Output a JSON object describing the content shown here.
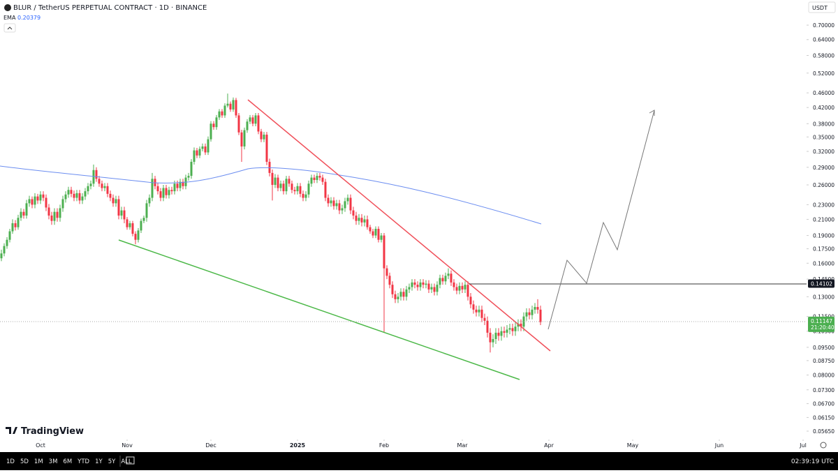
{
  "header": {
    "symbol": "BLUR / TetherUS PERPETUAL CONTRACT · 1D · BINANCE",
    "indicator": "EMA",
    "indicator_value": 0.20379,
    "currency": "USDT",
    "logo": "TradingView"
  },
  "toolbar": {
    "ranges": [
      "1D",
      "5D",
      "1M",
      "3M",
      "6M",
      "YTD",
      "1Y",
      "5Y",
      "ALL"
    ],
    "clock": "02:39:19 UTC"
  },
  "chart_data": {
    "type": "candlestick",
    "log_scale": true,
    "up_color": "#4caf50",
    "down_color": "#f23645",
    "xlim": [
      -14.5,
      274.25
    ],
    "xticks": [
      {
        "value": 0,
        "label": "Oct"
      },
      {
        "value": 31,
        "label": "Nov"
      },
      {
        "value": 61,
        "label": "Dec"
      },
      {
        "value": 92,
        "label": "2025"
      },
      {
        "value": 123,
        "label": "Feb"
      },
      {
        "value": 151,
        "label": "Mar"
      },
      {
        "value": 182,
        "label": "Apr"
      },
      {
        "value": 212,
        "label": "May"
      },
      {
        "value": 243,
        "label": "Jun"
      },
      {
        "value": 273,
        "label": "Jul"
      }
    ],
    "ylim": [
      0.0492,
      0.818
    ],
    "yticks": [
      {
        "value": 0.7,
        "label": "0.70000"
      },
      {
        "value": 0.64,
        "label": "0.64000"
      },
      {
        "value": 0.58,
        "label": "0.58000"
      },
      {
        "value": 0.52,
        "label": "0.52000"
      },
      {
        "value": 0.46,
        "label": "0.46000"
      },
      {
        "value": 0.42,
        "label": "0.42000"
      },
      {
        "value": 0.38,
        "label": "0.38000"
      },
      {
        "value": 0.35,
        "label": "0.35000"
      },
      {
        "value": 0.32,
        "label": "0.32000"
      },
      {
        "value": 0.29,
        "label": "0.29000"
      },
      {
        "value": 0.26,
        "label": "0.26000"
      },
      {
        "value": 0.23,
        "label": "0.23000"
      },
      {
        "value": 0.21,
        "label": "0.21000"
      },
      {
        "value": 0.19,
        "label": "0.19000"
      },
      {
        "value": 0.175,
        "label": "0.17500"
      },
      {
        "value": 0.16,
        "label": "0.16000"
      },
      {
        "value": 0.145,
        "label": "0.14500"
      },
      {
        "value": 0.13,
        "label": "0.13000"
      },
      {
        "value": 0.115,
        "label": "0.11500"
      },
      {
        "value": 0.105,
        "label": "0.10500"
      },
      {
        "value": 0.095,
        "label": "0.09500"
      },
      {
        "value": 0.0875,
        "label": "0.08750"
      },
      {
        "value": 0.08,
        "label": "0.08000"
      },
      {
        "value": 0.073,
        "label": "0.07300"
      },
      {
        "value": 0.067,
        "label": "0.06700"
      },
      {
        "value": 0.0615,
        "label": "0.06150"
      },
      {
        "value": 0.0565,
        "label": "0.05650"
      }
    ],
    "last_price": 0.11147,
    "countdown": "21:20:40",
    "level": 0.14102,
    "x": [
      -14,
      -13,
      -12,
      -11,
      -10,
      -9,
      -8,
      -7,
      -6,
      -5,
      -4,
      -3,
      -2,
      -1,
      0,
      1,
      2,
      3,
      4,
      5,
      6,
      7,
      8,
      9,
      10,
      11,
      12,
      13,
      14,
      15,
      16,
      17,
      18,
      19,
      20,
      21,
      22,
      23,
      24,
      25,
      26,
      27,
      28,
      29,
      30,
      31,
      32,
      33,
      34,
      35,
      36,
      37,
      38,
      39,
      40,
      41,
      42,
      43,
      44,
      45,
      46,
      47,
      48,
      49,
      50,
      51,
      52,
      53,
      54,
      55,
      56,
      57,
      58,
      59,
      60,
      61,
      62,
      63,
      64,
      65,
      66,
      67,
      68,
      69,
      70,
      71,
      72,
      73,
      74,
      75,
      76,
      77,
      78,
      79,
      80,
      81,
      82,
      83,
      84,
      85,
      86,
      87,
      88,
      89,
      90,
      91,
      92,
      93,
      94,
      95,
      96,
      97,
      98,
      99,
      100,
      101,
      102,
      103,
      104,
      105,
      106,
      107,
      108,
      109,
      110,
      111,
      112,
      113,
      114,
      115,
      116,
      117,
      118,
      119,
      120,
      121,
      122,
      123,
      124,
      125,
      126,
      127,
      128,
      129,
      130,
      131,
      132,
      133,
      134,
      135,
      136,
      137,
      138,
      139,
      140,
      141,
      142,
      143,
      144,
      145,
      146,
      147,
      148,
      149,
      150,
      151,
      152,
      153,
      154,
      155,
      156,
      157,
      158,
      159,
      160,
      161,
      162,
      163,
      164,
      165,
      166,
      167,
      168,
      169,
      170,
      171,
      172,
      173,
      174,
      175,
      176,
      177,
      178,
      179
    ],
    "candles": [
      [
        0.165,
        0.174,
        0.162,
        0.17
      ],
      [
        0.17,
        0.181,
        0.167,
        0.178
      ],
      [
        0.178,
        0.188,
        0.175,
        0.185
      ],
      [
        0.185,
        0.198,
        0.182,
        0.195
      ],
      [
        0.195,
        0.21,
        0.192,
        0.205
      ],
      [
        0.205,
        0.209,
        0.196,
        0.2
      ],
      [
        0.2,
        0.216,
        0.197,
        0.212
      ],
      [
        0.212,
        0.225,
        0.208,
        0.22
      ],
      [
        0.22,
        0.224,
        0.211,
        0.215
      ],
      [
        0.215,
        0.237,
        0.211,
        0.232
      ],
      [
        0.232,
        0.243,
        0.227,
        0.238
      ],
      [
        0.238,
        0.242,
        0.225,
        0.23
      ],
      [
        0.23,
        0.247,
        0.225,
        0.242
      ],
      [
        0.242,
        0.246,
        0.231,
        0.236
      ],
      [
        0.236,
        0.25,
        0.231,
        0.245
      ],
      [
        0.245,
        0.25,
        0.235,
        0.24
      ],
      [
        0.24,
        0.245,
        0.221,
        0.226
      ],
      [
        0.226,
        0.231,
        0.21,
        0.215
      ],
      [
        0.215,
        0.22,
        0.203,
        0.208
      ],
      [
        0.208,
        0.225,
        0.203,
        0.22
      ],
      [
        0.22,
        0.225,
        0.207,
        0.212
      ],
      [
        0.212,
        0.23,
        0.207,
        0.225
      ],
      [
        0.225,
        0.243,
        0.22,
        0.238
      ],
      [
        0.238,
        0.25,
        0.233,
        0.245
      ],
      [
        0.245,
        0.257,
        0.24,
        0.252
      ],
      [
        0.252,
        0.257,
        0.241,
        0.246
      ],
      [
        0.246,
        0.251,
        0.235,
        0.24
      ],
      [
        0.24,
        0.252,
        0.235,
        0.247
      ],
      [
        0.247,
        0.252,
        0.231,
        0.236
      ],
      [
        0.236,
        0.247,
        0.231,
        0.242
      ],
      [
        0.242,
        0.255,
        0.237,
        0.25
      ],
      [
        0.25,
        0.263,
        0.245,
        0.258
      ],
      [
        0.258,
        0.267,
        0.253,
        0.262
      ],
      [
        0.262,
        0.295,
        0.257,
        0.285
      ],
      [
        0.285,
        0.29,
        0.265,
        0.27
      ],
      [
        0.27,
        0.275,
        0.257,
        0.262
      ],
      [
        0.262,
        0.267,
        0.25,
        0.255
      ],
      [
        0.255,
        0.263,
        0.25,
        0.258
      ],
      [
        0.258,
        0.263,
        0.241,
        0.246
      ],
      [
        0.246,
        0.251,
        0.235,
        0.24
      ],
      [
        0.24,
        0.245,
        0.227,
        0.232
      ],
      [
        0.232,
        0.243,
        0.227,
        0.238
      ],
      [
        0.238,
        0.243,
        0.21,
        0.215
      ],
      [
        0.215,
        0.227,
        0.21,
        0.222
      ],
      [
        0.222,
        0.227,
        0.205,
        0.21
      ],
      [
        0.21,
        0.213,
        0.197,
        0.2
      ],
      [
        0.2,
        0.208,
        0.197,
        0.205
      ],
      [
        0.205,
        0.208,
        0.189,
        0.192
      ],
      [
        0.192,
        0.195,
        0.18,
        0.185
      ],
      [
        0.185,
        0.199,
        0.182,
        0.196
      ],
      [
        0.196,
        0.211,
        0.193,
        0.208
      ],
      [
        0.208,
        0.215,
        0.205,
        0.212
      ],
      [
        0.212,
        0.237,
        0.207,
        0.232
      ],
      [
        0.232,
        0.245,
        0.227,
        0.24
      ],
      [
        0.24,
        0.28,
        0.235,
        0.27
      ],
      [
        0.27,
        0.275,
        0.253,
        0.258
      ],
      [
        0.258,
        0.263,
        0.245,
        0.25
      ],
      [
        0.25,
        0.255,
        0.235,
        0.24
      ],
      [
        0.24,
        0.26,
        0.235,
        0.255
      ],
      [
        0.255,
        0.26,
        0.239,
        0.244
      ],
      [
        0.244,
        0.257,
        0.239,
        0.252
      ],
      [
        0.252,
        0.257,
        0.245,
        0.25
      ],
      [
        0.25,
        0.267,
        0.245,
        0.262
      ],
      [
        0.262,
        0.267,
        0.25,
        0.255
      ],
      [
        0.255,
        0.27,
        0.25,
        0.265
      ],
      [
        0.265,
        0.27,
        0.253,
        0.258
      ],
      [
        0.258,
        0.277,
        0.253,
        0.272
      ],
      [
        0.272,
        0.28,
        0.267,
        0.275
      ],
      [
        0.275,
        0.305,
        0.27,
        0.3
      ],
      [
        0.3,
        0.328,
        0.295,
        0.322
      ],
      [
        0.322,
        0.327,
        0.307,
        0.312
      ],
      [
        0.312,
        0.33,
        0.307,
        0.325
      ],
      [
        0.325,
        0.336,
        0.32,
        0.33
      ],
      [
        0.33,
        0.336,
        0.313,
        0.318
      ],
      [
        0.318,
        0.351,
        0.313,
        0.345
      ],
      [
        0.345,
        0.386,
        0.34,
        0.38
      ],
      [
        0.38,
        0.386,
        0.366,
        0.372
      ],
      [
        0.372,
        0.401,
        0.366,
        0.395
      ],
      [
        0.395,
        0.416,
        0.389,
        0.41
      ],
      [
        0.41,
        0.416,
        0.394,
        0.4
      ],
      [
        0.4,
        0.431,
        0.394,
        0.425
      ],
      [
        0.425,
        0.458,
        0.42,
        0.43
      ],
      [
        0.43,
        0.436,
        0.409,
        0.415
      ],
      [
        0.415,
        0.447,
        0.409,
        0.44
      ],
      [
        0.44,
        0.446,
        0.394,
        0.4
      ],
      [
        0.4,
        0.406,
        0.354,
        0.36
      ],
      [
        0.36,
        0.366,
        0.3,
        0.33
      ],
      [
        0.33,
        0.371,
        0.324,
        0.365
      ],
      [
        0.365,
        0.391,
        0.359,
        0.385
      ],
      [
        0.385,
        0.401,
        0.379,
        0.395
      ],
      [
        0.395,
        0.401,
        0.374,
        0.38
      ],
      [
        0.38,
        0.406,
        0.374,
        0.4
      ],
      [
        0.4,
        0.406,
        0.356,
        0.362
      ],
      [
        0.362,
        0.368,
        0.339,
        0.345
      ],
      [
        0.345,
        0.361,
        0.339,
        0.355
      ],
      [
        0.355,
        0.361,
        0.294,
        0.3
      ],
      [
        0.3,
        0.306,
        0.274,
        0.28
      ],
      [
        0.28,
        0.286,
        0.236,
        0.26
      ],
      [
        0.26,
        0.278,
        0.255,
        0.272
      ],
      [
        0.272,
        0.277,
        0.25,
        0.255
      ],
      [
        0.255,
        0.267,
        0.25,
        0.262
      ],
      [
        0.262,
        0.267,
        0.245,
        0.25
      ],
      [
        0.25,
        0.275,
        0.245,
        0.27
      ],
      [
        0.27,
        0.275,
        0.257,
        0.262
      ],
      [
        0.262,
        0.267,
        0.247,
        0.252
      ],
      [
        0.252,
        0.257,
        0.245,
        0.25
      ],
      [
        0.25,
        0.263,
        0.245,
        0.258
      ],
      [
        0.258,
        0.263,
        0.241,
        0.246
      ],
      [
        0.246,
        0.251,
        0.235,
        0.24
      ],
      [
        0.24,
        0.25,
        0.235,
        0.245
      ],
      [
        0.245,
        0.267,
        0.24,
        0.262
      ],
      [
        0.262,
        0.277,
        0.257,
        0.272
      ],
      [
        0.272,
        0.277,
        0.263,
        0.268
      ],
      [
        0.268,
        0.28,
        0.263,
        0.275
      ],
      [
        0.275,
        0.28,
        0.267,
        0.272
      ],
      [
        0.272,
        0.277,
        0.26,
        0.265
      ],
      [
        0.265,
        0.27,
        0.235,
        0.24
      ],
      [
        0.24,
        0.245,
        0.227,
        0.232
      ],
      [
        0.232,
        0.241,
        0.227,
        0.236
      ],
      [
        0.236,
        0.241,
        0.223,
        0.228
      ],
      [
        0.228,
        0.237,
        0.223,
        0.232
      ],
      [
        0.232,
        0.237,
        0.217,
        0.222
      ],
      [
        0.222,
        0.23,
        0.217,
        0.225
      ],
      [
        0.225,
        0.24,
        0.22,
        0.235
      ],
      [
        0.235,
        0.245,
        0.23,
        0.24
      ],
      [
        0.24,
        0.245,
        0.217,
        0.222
      ],
      [
        0.222,
        0.227,
        0.21,
        0.215
      ],
      [
        0.215,
        0.22,
        0.203,
        0.208
      ],
      [
        0.208,
        0.217,
        0.203,
        0.212
      ],
      [
        0.212,
        0.217,
        0.201,
        0.206
      ],
      [
        0.206,
        0.215,
        0.201,
        0.21
      ],
      [
        0.21,
        0.215,
        0.197,
        0.2
      ],
      [
        0.2,
        0.203,
        0.192,
        0.195
      ],
      [
        0.195,
        0.198,
        0.187,
        0.19
      ],
      [
        0.19,
        0.201,
        0.187,
        0.198
      ],
      [
        0.198,
        0.201,
        0.182,
        0.185
      ],
      [
        0.185,
        0.193,
        0.182,
        0.19
      ],
      [
        0.19,
        0.193,
        0.104,
        0.155
      ],
      [
        0.155,
        0.158,
        0.145,
        0.148
      ],
      [
        0.148,
        0.151,
        0.137,
        0.14
      ],
      [
        0.14,
        0.143,
        0.129,
        0.132
      ],
      [
        0.132,
        0.135,
        0.125,
        0.128
      ],
      [
        0.128,
        0.133,
        0.125,
        0.13
      ],
      [
        0.13,
        0.137,
        0.127,
        0.134
      ],
      [
        0.134,
        0.137,
        0.127,
        0.13
      ],
      [
        0.13,
        0.139,
        0.127,
        0.136
      ],
      [
        0.136,
        0.141,
        0.133,
        0.138
      ],
      [
        0.138,
        0.145,
        0.135,
        0.142
      ],
      [
        0.142,
        0.145,
        0.137,
        0.14
      ],
      [
        0.14,
        0.143,
        0.135,
        0.138
      ],
      [
        0.138,
        0.145,
        0.135,
        0.142
      ],
      [
        0.142,
        0.145,
        0.137,
        0.14
      ],
      [
        0.14,
        0.144,
        0.137,
        0.141
      ],
      [
        0.141,
        0.144,
        0.133,
        0.136
      ],
      [
        0.136,
        0.141,
        0.133,
        0.138
      ],
      [
        0.138,
        0.141,
        0.131,
        0.134
      ],
      [
        0.134,
        0.143,
        0.131,
        0.14
      ],
      [
        0.14,
        0.149,
        0.137,
        0.146
      ],
      [
        0.146,
        0.149,
        0.14,
        0.143
      ],
      [
        0.143,
        0.151,
        0.14,
        0.148
      ],
      [
        0.148,
        0.155,
        0.145,
        0.15
      ],
      [
        0.15,
        0.153,
        0.139,
        0.142
      ],
      [
        0.142,
        0.145,
        0.135,
        0.138
      ],
      [
        0.138,
        0.141,
        0.132,
        0.135
      ],
      [
        0.135,
        0.142,
        0.132,
        0.139
      ],
      [
        0.139,
        0.142,
        0.133,
        0.136
      ],
      [
        0.136,
        0.143,
        0.133,
        0.14
      ],
      [
        0.14,
        0.143,
        0.127,
        0.13
      ],
      [
        0.13,
        0.133,
        0.121,
        0.124
      ],
      [
        0.124,
        0.127,
        0.117,
        0.12
      ],
      [
        0.12,
        0.123,
        0.115,
        0.118
      ],
      [
        0.118,
        0.123,
        0.115,
        0.12
      ],
      [
        0.12,
        0.123,
        0.111,
        0.114
      ],
      [
        0.114,
        0.117,
        0.109,
        0.112
      ],
      [
        0.112,
        0.115,
        0.101,
        0.104
      ],
      [
        0.104,
        0.107,
        0.092,
        0.098
      ],
      [
        0.098,
        0.103,
        0.095,
        0.1
      ],
      [
        0.1,
        0.107,
        0.097,
        0.104
      ],
      [
        0.104,
        0.107,
        0.099,
        0.102
      ],
      [
        0.102,
        0.108,
        0.099,
        0.105
      ],
      [
        0.105,
        0.108,
        0.101,
        0.104
      ],
      [
        0.104,
        0.109,
        0.101,
        0.106
      ],
      [
        0.106,
        0.11,
        0.103,
        0.107
      ],
      [
        0.107,
        0.11,
        0.102,
        0.105
      ],
      [
        0.105,
        0.111,
        0.102,
        0.108
      ],
      [
        0.108,
        0.113,
        0.105,
        0.11
      ],
      [
        0.11,
        0.113,
        0.105,
        0.108
      ],
      [
        0.108,
        0.118,
        0.105,
        0.115
      ],
      [
        0.115,
        0.121,
        0.112,
        0.118
      ],
      [
        0.118,
        0.121,
        0.113,
        0.116
      ],
      [
        0.116,
        0.123,
        0.113,
        0.12
      ],
      [
        0.12,
        0.125,
        0.117,
        0.122
      ],
      [
        0.122,
        0.128,
        0.117,
        0.12
      ],
      [
        0.12,
        0.123,
        0.109,
        0.111
      ]
    ]
  }
}
